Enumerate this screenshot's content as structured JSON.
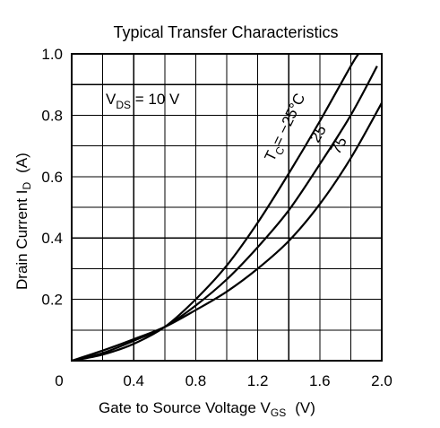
{
  "chart_data": {
    "type": "line",
    "title": "Typical Transfer Characteristics",
    "xlabel": {
      "main": "Gate to Source Voltage  V",
      "sub": "GS",
      "unit": "(V)"
    },
    "ylabel": {
      "main": "Drain Current  I",
      "sub": "D",
      "unit": "(A)"
    },
    "xlim": [
      0,
      2.0
    ],
    "ylim": [
      0,
      1.0
    ],
    "grid": true,
    "x_ticks": [
      "0",
      "0.4",
      "0.8",
      "1.2",
      "1.6",
      "2.0"
    ],
    "x_tick_values": [
      0,
      0.4,
      0.8,
      1.2,
      1.6,
      2.0
    ],
    "y_ticks": [
      "1.0",
      "0.8",
      "0.6",
      "0.4",
      "0.2"
    ],
    "y_tick_values": [
      1.0,
      0.8,
      0.6,
      0.4,
      0.2
    ],
    "condition": {
      "main": "V",
      "sub": "DS",
      "rest": " = 10 V"
    },
    "series_labels": {
      "tc_prefix": "T",
      "tc_sub": "C",
      "tc_value": "= −25°C",
      "mid": "25",
      "hot": "75"
    },
    "series": [
      {
        "name": "−25°C",
        "x": [
          0.0,
          0.2,
          0.4,
          0.6,
          0.8,
          1.0,
          1.2,
          1.4,
          1.6,
          1.8,
          1.85
        ],
        "y": [
          0.0,
          0.02,
          0.055,
          0.11,
          0.2,
          0.31,
          0.45,
          0.61,
          0.78,
          0.96,
          1.0
        ]
      },
      {
        "name": "25",
        "x": [
          0.0,
          0.2,
          0.4,
          0.6,
          0.8,
          1.0,
          1.2,
          1.4,
          1.6,
          1.8,
          1.97
        ],
        "y": [
          0.0,
          0.025,
          0.065,
          0.11,
          0.18,
          0.265,
          0.37,
          0.49,
          0.64,
          0.8,
          0.96
        ]
      },
      {
        "name": "75",
        "x": [
          0.0,
          0.2,
          0.4,
          0.6,
          0.8,
          1.0,
          1.2,
          1.4,
          1.6,
          1.8,
          2.0
        ],
        "y": [
          0.0,
          0.033,
          0.07,
          0.11,
          0.165,
          0.225,
          0.3,
          0.39,
          0.51,
          0.66,
          0.84
        ]
      }
    ]
  }
}
